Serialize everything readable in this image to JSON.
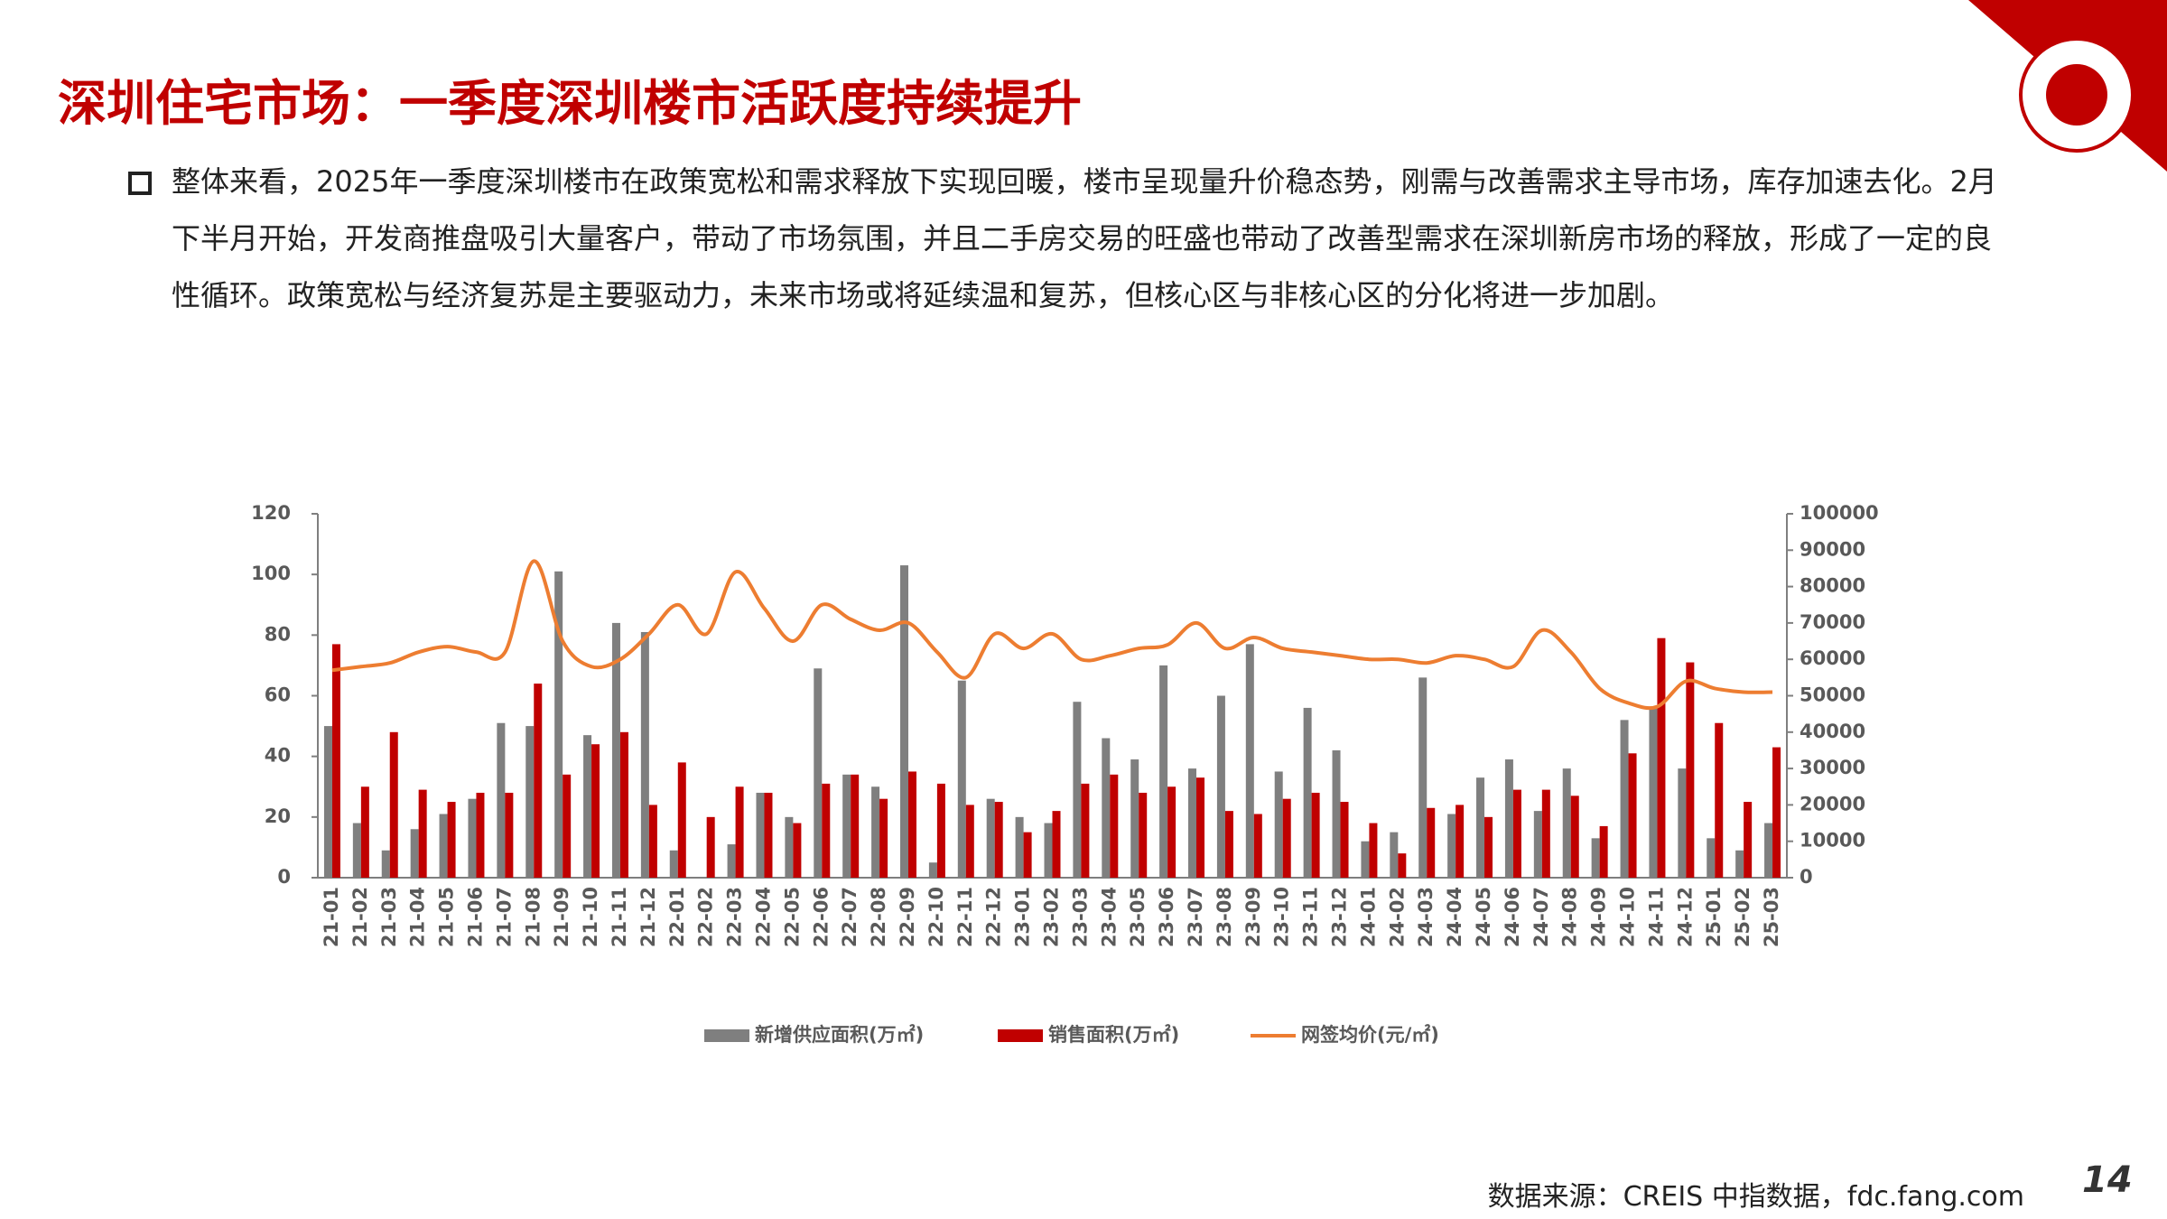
{
  "header": {
    "title": "深圳住宅市场：一季度深圳楼市活跃度持续提升"
  },
  "body": "整体来看，2025年一季度深圳楼市在政策宽松和需求释放下实现回暖，楼市呈现量升价稳态势，刚需与改善需求主导市场，库存加速去化。2月下半月开始，开发商推盘吸引大量客户，带动了市场氛围，并且二手房交易的旺盛也带动了改善型需求在深圳新房市场的释放，形成了一定的良性循环。政策宽松与经济复苏是主要驱动力，未来市场或将延续温和复苏，但核心区与非核心区的分化将进一步加剧。",
  "source": "数据来源：CREIS 中指数据，fdc.fang.com",
  "page_number": "14",
  "chart_data": {
    "type": "bar-line",
    "categories": [
      "21-01",
      "21-02",
      "21-03",
      "21-04",
      "21-05",
      "21-06",
      "21-07",
      "21-08",
      "21-09",
      "21-10",
      "21-11",
      "21-12",
      "22-01",
      "22-02",
      "22-03",
      "22-04",
      "22-05",
      "22-06",
      "22-07",
      "22-08",
      "22-09",
      "22-10",
      "22-11",
      "22-12",
      "23-01",
      "23-02",
      "23-03",
      "23-04",
      "23-05",
      "23-06",
      "23-07",
      "23-08",
      "23-09",
      "23-10",
      "23-11",
      "23-12",
      "24-01",
      "24-02",
      "24-03",
      "24-04",
      "24-05",
      "24-06",
      "24-07",
      "24-08",
      "24-09",
      "24-10",
      "24-11",
      "24-12",
      "25-01",
      "25-02",
      "25-03"
    ],
    "series": [
      {
        "name": "新增供应面积(万㎡)",
        "type": "bar",
        "color": "#7f7f7f",
        "values": [
          50,
          18,
          9,
          16,
          21,
          26,
          51,
          50,
          101,
          47,
          84,
          81,
          9,
          0,
          11,
          28,
          20,
          69,
          34,
          30,
          103,
          5,
          65,
          26,
          20,
          18,
          58,
          46,
          39,
          70,
          36,
          60,
          77,
          35,
          56,
          42,
          12,
          15,
          66,
          21,
          33,
          39,
          22,
          36,
          13,
          52,
          56,
          36,
          13,
          9,
          18
        ]
      },
      {
        "name": "销售面积(万㎡)",
        "type": "bar",
        "color": "#c00000",
        "values": [
          77,
          30,
          48,
          29,
          25,
          28,
          28,
          64,
          34,
          44,
          48,
          24,
          38,
          20,
          30,
          28,
          18,
          31,
          34,
          26,
          35,
          31,
          24,
          25,
          15,
          22,
          31,
          34,
          28,
          30,
          33,
          22,
          21,
          26,
          28,
          25,
          18,
          8,
          23,
          24,
          20,
          29,
          29,
          27,
          17,
          41,
          79,
          71,
          51,
          25,
          43
        ]
      },
      {
        "name": "网签均价(元/㎡)",
        "type": "line",
        "axis": "y2",
        "color": "#ed7d31",
        "values": [
          57000,
          58000,
          59000,
          62000,
          63500,
          62000,
          62000,
          87000,
          65000,
          58000,
          60000,
          67000,
          75000,
          67000,
          84000,
          74000,
          65000,
          75000,
          71000,
          68000,
          70000,
          62000,
          55000,
          67000,
          63000,
          67000,
          60000,
          61000,
          63000,
          64000,
          70000,
          63000,
          66000,
          63000,
          62000,
          61000,
          60000,
          60000,
          59000,
          61000,
          60000,
          58000,
          68000,
          62000,
          52000,
          48000,
          47000,
          54000,
          52000,
          51000,
          51000
        ]
      }
    ],
    "ylim": [
      0,
      120
    ],
    "yticks": [
      0,
      20,
      40,
      60,
      80,
      100,
      120
    ],
    "y2lim": [
      0,
      100000
    ],
    "y2ticks": [
      0,
      10000,
      20000,
      30000,
      40000,
      50000,
      60000,
      70000,
      80000,
      90000,
      100000
    ],
    "grid": false,
    "legend": "bottom"
  }
}
